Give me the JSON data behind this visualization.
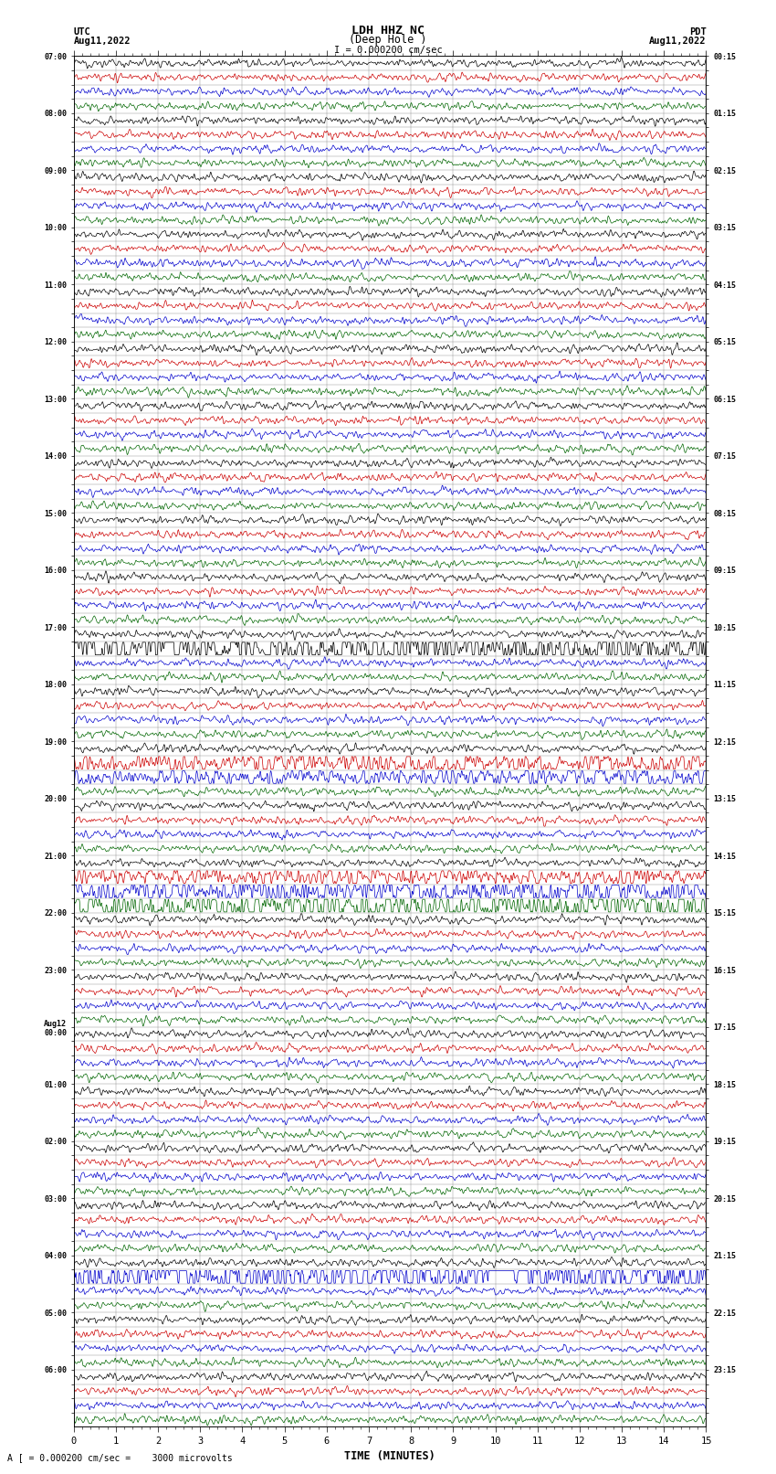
{
  "title_line1": "LDH HHZ NC",
  "title_line2": "(Deep Hole )",
  "scale_label": "I = 0.000200 cm/sec",
  "footer_label": "A [ = 0.000200 cm/sec =    3000 microvolts",
  "xlabel": "TIME (MINUTES)",
  "x_min": 0,
  "x_max": 15,
  "x_ticks": [
    0,
    1,
    2,
    3,
    4,
    5,
    6,
    7,
    8,
    9,
    10,
    11,
    12,
    13,
    14,
    15
  ],
  "background_color": "#ffffff",
  "trace_colors": [
    "#000000",
    "#cc0000",
    "#0000cc",
    "#006600"
  ],
  "fig_width": 8.5,
  "fig_height": 16.13,
  "left_time_labels": [
    "07:00",
    "",
    "",
    "",
    "08:00",
    "",
    "",
    "",
    "09:00",
    "",
    "",
    "",
    "10:00",
    "",
    "",
    "",
    "11:00",
    "",
    "",
    "",
    "12:00",
    "",
    "",
    "",
    "13:00",
    "",
    "",
    "",
    "14:00",
    "",
    "",
    "",
    "15:00",
    "",
    "",
    "",
    "16:00",
    "",
    "",
    "",
    "17:00",
    "",
    "",
    "",
    "18:00",
    "",
    "",
    "",
    "19:00",
    "",
    "",
    "",
    "20:00",
    "",
    "",
    "",
    "21:00",
    "",
    "",
    "",
    "22:00",
    "",
    "",
    "",
    "23:00",
    "",
    "",
    "",
    "Aug12\n00:00",
    "",
    "",
    "",
    "01:00",
    "",
    "",
    "",
    "02:00",
    "",
    "",
    "",
    "03:00",
    "",
    "",
    "",
    "04:00",
    "",
    "",
    "",
    "05:00",
    "",
    "",
    "",
    "06:00",
    "",
    "",
    ""
  ],
  "right_time_labels": [
    "00:15",
    "",
    "",
    "",
    "01:15",
    "",
    "",
    "",
    "02:15",
    "",
    "",
    "",
    "03:15",
    "",
    "",
    "",
    "04:15",
    "",
    "",
    "",
    "05:15",
    "",
    "",
    "",
    "06:15",
    "",
    "",
    "",
    "07:15",
    "",
    "",
    "",
    "08:15",
    "",
    "",
    "",
    "09:15",
    "",
    "",
    "",
    "10:15",
    "",
    "",
    "",
    "11:15",
    "",
    "",
    "",
    "12:15",
    "",
    "",
    "",
    "13:15",
    "",
    "",
    "",
    "14:15",
    "",
    "",
    "",
    "15:15",
    "",
    "",
    "",
    "16:15",
    "",
    "",
    "",
    "17:15",
    "",
    "",
    "",
    "18:15",
    "",
    "",
    "",
    "19:15",
    "",
    "",
    "",
    "20:15",
    "",
    "",
    "",
    "21:15",
    "",
    "",
    "",
    "22:15",
    "",
    "",
    "",
    "23:15",
    "",
    "",
    ""
  ],
  "noise_base": 0.28,
  "grid_color": "#888888",
  "grid_linewidth": 0.3,
  "trace_linewidth": 0.5,
  "special_traces": {
    "41": {
      "amp_mult": 6.0,
      "color": "#000000"
    },
    "49": {
      "amp_mult": 3.0,
      "color": "#cc0000"
    },
    "50": {
      "amp_mult": 2.5,
      "color": "#0000cc"
    },
    "57": {
      "amp_mult": 2.5,
      "color": "#cc0000"
    },
    "58": {
      "amp_mult": 4.0,
      "color": "#0000cc"
    },
    "59": {
      "amp_mult": 4.5,
      "color": "#006600"
    },
    "85": {
      "amp_mult": 6.0,
      "color": "#0000cc"
    }
  }
}
